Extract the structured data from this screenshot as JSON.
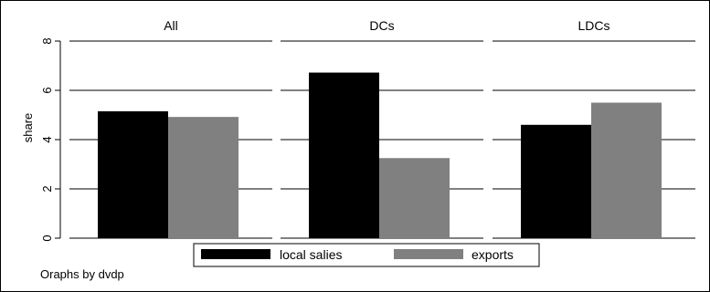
{
  "chart_data": {
    "type": "bar",
    "ylabel": "share",
    "ylim": [
      0,
      8
    ],
    "yticks": [
      0,
      2,
      4,
      6,
      8
    ],
    "grid": true,
    "series": [
      {
        "name": "local salies",
        "color": "#000000"
      },
      {
        "name": "exports",
        "color": "#808080"
      }
    ],
    "panels": [
      {
        "title": "All",
        "values": [
          5.15,
          4.92
        ]
      },
      {
        "title": "DCs",
        "values": [
          6.72,
          3.25
        ]
      },
      {
        "title": "LDCs",
        "values": [
          4.6,
          5.5
        ]
      }
    ],
    "legend_position": "bottom",
    "note": "Oraphs by dvdp"
  }
}
